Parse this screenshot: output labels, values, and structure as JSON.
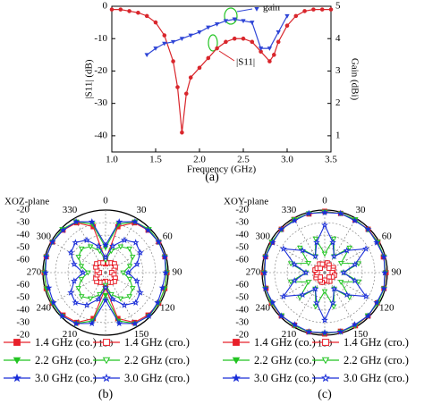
{
  "chart_data": [
    {
      "type": "line",
      "xlabel": "Frequency (GHz)",
      "ylabel": "|S11| (dB)",
      "y2label": "Gain (dBi)",
      "caption": "(a)",
      "xlim": [
        1.0,
        3.5
      ],
      "xticks": [
        {
          "value": 1.0,
          "label": "1.0"
        },
        1.5,
        {
          "value": 2.0,
          "label": "2.0"
        },
        2.5,
        {
          "value": 3.0,
          "label": "3.0"
        },
        3.5
      ],
      "ylim": [
        -45,
        0
      ],
      "yticks": [
        -40,
        -30,
        -20,
        -10,
        0
      ],
      "y2lim": [
        0.5,
        5
      ],
      "y2ticks": [
        1,
        2,
        3,
        4,
        5
      ],
      "series": [
        {
          "name": "|S11|",
          "color": "#d9262c",
          "marker": "circle",
          "x": [
            1.0,
            1.1,
            1.2,
            1.3,
            1.4,
            1.5,
            1.6,
            1.7,
            1.75,
            1.8,
            1.85,
            1.9,
            2.0,
            2.1,
            2.2,
            2.3,
            2.4,
            2.5,
            2.6,
            2.7,
            2.8,
            2.85,
            2.9,
            3.0,
            3.1,
            3.2,
            3.3,
            3.4,
            3.5
          ],
          "values": [
            -1,
            -1,
            -1.5,
            -2,
            -3,
            -5,
            -9,
            -17,
            -25,
            -39,
            -27,
            -22,
            -19,
            -16,
            -13,
            -11,
            -10,
            -10,
            -11,
            -14,
            -17,
            -15,
            -11,
            -6,
            -3,
            -1.5,
            -1,
            -1,
            -1
          ]
        },
        {
          "name": "gain",
          "color": "#2f45d6",
          "marker": "triangle",
          "axis": "y2",
          "x": [
            1.4,
            1.5,
            1.6,
            1.7,
            1.8,
            1.9,
            2.0,
            2.1,
            2.2,
            2.3,
            2.4,
            2.5,
            2.6,
            2.7,
            2.8,
            2.9,
            3.0
          ],
          "values": [
            3.5,
            3.7,
            3.85,
            3.9,
            4.0,
            4.1,
            4.2,
            4.35,
            4.45,
            4.55,
            4.6,
            4.55,
            4.5,
            3.7,
            3.7,
            4.2,
            4.7
          ]
        }
      ]
    },
    {
      "type": "polar",
      "title": "XOZ-plane",
      "caption": "(b)",
      "rlim": [
        -70,
        -20
      ],
      "rticks": [
        -60,
        -50,
        -40,
        -30,
        -20
      ],
      "thetaticks": [
        0,
        30,
        60,
        90,
        120,
        150,
        180,
        210,
        240,
        270,
        300,
        330
      ],
      "theta": [
        0,
        15,
        30,
        45,
        60,
        75,
        90,
        105,
        120,
        135,
        150,
        165,
        180,
        195,
        210,
        225,
        240,
        255,
        270,
        285,
        300,
        315,
        330,
        345
      ],
      "series": [
        {
          "name": "1.4 GHz (co.)",
          "color": "#e8202a",
          "marker": "square",
          "filled": true,
          "values": [
            -60,
            -32,
            -24,
            -22,
            -21,
            -21,
            -21,
            -21,
            -21,
            -22,
            -24,
            -32,
            -58,
            -32,
            -24,
            -22,
            -21,
            -21,
            -21,
            -21,
            -21,
            -22,
            -24,
            -32
          ]
        },
        {
          "name": "1.4 GHz (cro.)",
          "color": "#e8202a",
          "marker": "square",
          "filled": false,
          "values": [
            -63,
            -62,
            -61,
            -60,
            -61,
            -63,
            -65,
            -63,
            -61,
            -60,
            -61,
            -62,
            -63,
            -62,
            -61,
            -60,
            -61,
            -63,
            -65,
            -63,
            -61,
            -60,
            -61,
            -62
          ]
        },
        {
          "name": "2.2 GHz (co.)",
          "color": "#22c422",
          "marker": "triangle",
          "filled": true,
          "values": [
            -50,
            -30,
            -23,
            -21,
            -21,
            -21,
            -21,
            -21,
            -21,
            -21,
            -23,
            -30,
            -52,
            -30,
            -23,
            -21,
            -21,
            -21,
            -21,
            -21,
            -21,
            -21,
            -23,
            -30
          ]
        },
        {
          "name": "2.2 GHz (cro.)",
          "color": "#22c422",
          "marker": "triangle",
          "filled": false,
          "values": [
            -60,
            -52,
            -46,
            -43,
            -45,
            -50,
            -56,
            -50,
            -45,
            -43,
            -46,
            -52,
            -60,
            -52,
            -46,
            -43,
            -45,
            -50,
            -56,
            -50,
            -45,
            -43,
            -46,
            -52
          ]
        },
        {
          "name": "3.0 GHz (co.)",
          "color": "#1a2ed8",
          "marker": "star",
          "filled": true,
          "values": [
            -48,
            -28,
            -23,
            -22,
            -21,
            -21,
            -22,
            -23,
            -22,
            -21,
            -23,
            -28,
            -48,
            -28,
            -23,
            -21,
            -22,
            -23,
            -22,
            -21,
            -21,
            -22,
            -23,
            -28
          ]
        },
        {
          "name": "3.0 GHz (cro.)",
          "color": "#1a2ed8",
          "marker": "star",
          "filled": false,
          "values": [
            -58,
            -48,
            -40,
            -36,
            -38,
            -44,
            -52,
            -44,
            -38,
            -36,
            -40,
            -48,
            -58,
            -48,
            -40,
            -36,
            -38,
            -44,
            -52,
            -44,
            -38,
            -36,
            -40,
            -48
          ]
        }
      ]
    },
    {
      "type": "polar",
      "title": "XOY-plane",
      "caption": "(c)",
      "rlim": [
        -70,
        -20
      ],
      "rticks": [
        -60,
        -50,
        -40,
        -30,
        -20
      ],
      "thetaticks": [
        0,
        30,
        60,
        90,
        120,
        150,
        180,
        210,
        240,
        270,
        300,
        330
      ],
      "theta": [
        0,
        15,
        30,
        45,
        60,
        75,
        90,
        105,
        120,
        135,
        150,
        165,
        180,
        195,
        210,
        225,
        240,
        255,
        270,
        285,
        300,
        315,
        330,
        345
      ],
      "series": [
        {
          "name": "1.4 GHz (co.)",
          "color": "#e8202a",
          "marker": "square",
          "filled": true,
          "values": [
            -21,
            -21,
            -21.5,
            -21,
            -21,
            -21.5,
            -21,
            -21,
            -21.5,
            -21,
            -21,
            -21.5,
            -21,
            -21,
            -21.5,
            -21,
            -21,
            -21.5,
            -21,
            -21,
            -21.5,
            -21,
            -21,
            -21.5
          ]
        },
        {
          "name": "1.4 GHz (cro.)",
          "color": "#e8202a",
          "marker": "square",
          "filled": false,
          "values": [
            -64,
            -62,
            -63,
            -65,
            -62,
            -63,
            -64,
            -62,
            -63,
            -65,
            -62,
            -63,
            -64,
            -62,
            -63,
            -65,
            -62,
            -63,
            -64,
            -62,
            -63,
            -65,
            -62,
            -63
          ]
        },
        {
          "name": "2.2 GHz (co.)",
          "color": "#22c422",
          "marker": "triangle",
          "filled": true,
          "values": [
            -21.5,
            -21,
            -21,
            -21.5,
            -21,
            -21,
            -21.5,
            -21,
            -21,
            -21.5,
            -21,
            -21,
            -21.5,
            -21,
            -21,
            -21.5,
            -21,
            -21,
            -21.5,
            -21,
            -21,
            -21.5,
            -21,
            -21
          ]
        },
        {
          "name": "2.2 GHz (cro.)",
          "color": "#22c422",
          "marker": "triangle",
          "filled": false,
          "values": [
            -55,
            -42,
            -55,
            -42,
            -55,
            -42,
            -55,
            -42,
            -55,
            -42,
            -55,
            -42,
            -55,
            -42,
            -55,
            -42,
            -55,
            -42,
            -55,
            -42,
            -55,
            -42,
            -55,
            -42
          ]
        },
        {
          "name": "3.0 GHz (co.)",
          "color": "#1a2ed8",
          "marker": "star",
          "filled": true,
          "values": [
            -22,
            -21,
            -22,
            -21,
            -22,
            -21,
            -22,
            -21,
            -22,
            -21,
            -22,
            -21,
            -22,
            -21,
            -22,
            -21,
            -22,
            -21,
            -22,
            -21,
            -22,
            -21,
            -22,
            -21
          ]
        },
        {
          "name": "3.0 GHz (cro.)",
          "color": "#1a2ed8",
          "marker": "star",
          "filled": false,
          "values": [
            -32,
            -45,
            -55,
            -45,
            -32,
            -45,
            -55,
            -45,
            -32,
            -45,
            -55,
            -45,
            -32,
            -45,
            -55,
            -45,
            -32,
            -45,
            -55,
            -45,
            -32,
            -45,
            -55,
            -45
          ]
        }
      ]
    }
  ]
}
